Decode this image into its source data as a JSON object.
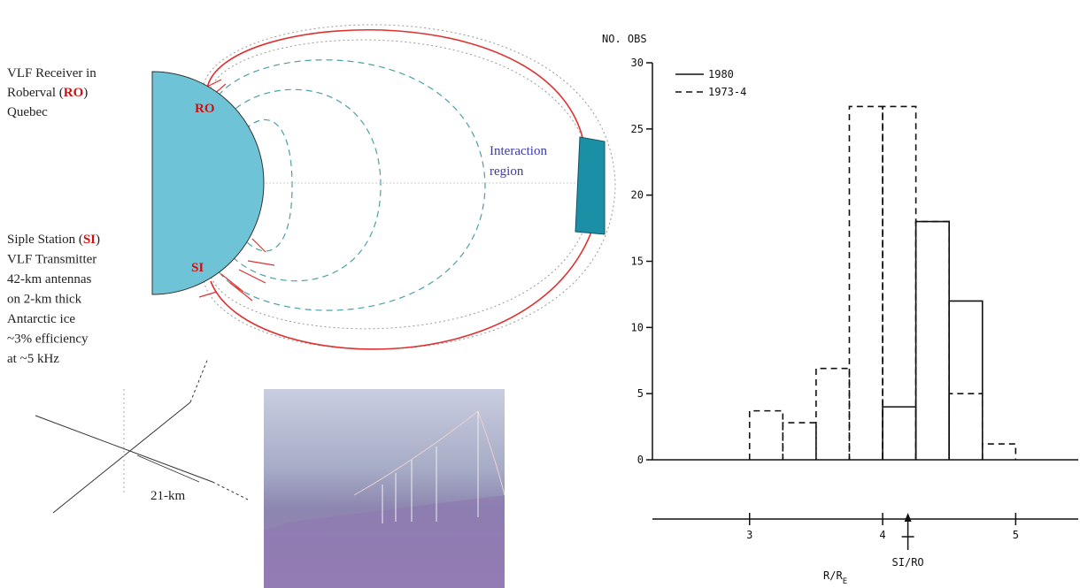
{
  "diagram": {
    "receiver_lines": [
      "VLF Receiver in",
      [
        "Roberval (",
        "RO",
        ")"
      ],
      "Quebec"
    ],
    "station_lines": [
      [
        "Siple Station (",
        "SI",
        ")"
      ],
      "VLF Transmitter",
      "42-km antennas",
      "on 2-km thick",
      "Antarctic ice",
      "~3% efficiency",
      "at ~5 kHz"
    ],
    "ro_mark": "RO",
    "si_mark": "SI",
    "interaction_lines": [
      "Interaction",
      "region"
    ],
    "antenna_length": "21-km"
  },
  "chart_data": {
    "type": "histogram",
    "ylabel": "NO. OBS",
    "xlabel": {
      "main": "R/R",
      "sub": "E"
    },
    "xlim": [
      2.27,
      5.47
    ],
    "xticks": [
      3,
      4,
      5
    ],
    "ylim": [
      0,
      30
    ],
    "yticks": [
      0,
      5,
      10,
      15,
      20,
      25,
      30
    ],
    "series": [
      {
        "name": "1980",
        "style": "solid",
        "color": "#111111",
        "bins": [
          4,
          4.25,
          4.5,
          4.75
        ],
        "values": [
          4,
          18,
          12
        ]
      },
      {
        "name": "1973-4",
        "style": "dashed",
        "color": "#111111",
        "bins": [
          3,
          3.25,
          3.5,
          3.75,
          4,
          4.25,
          4.5,
          4.75,
          5
        ],
        "values": [
          3.7,
          2.8,
          6.9,
          26.7,
          26.7,
          18,
          5,
          1.2
        ]
      }
    ],
    "annotations": [
      {
        "text": "SI/RO",
        "x": 4.19
      }
    ]
  }
}
